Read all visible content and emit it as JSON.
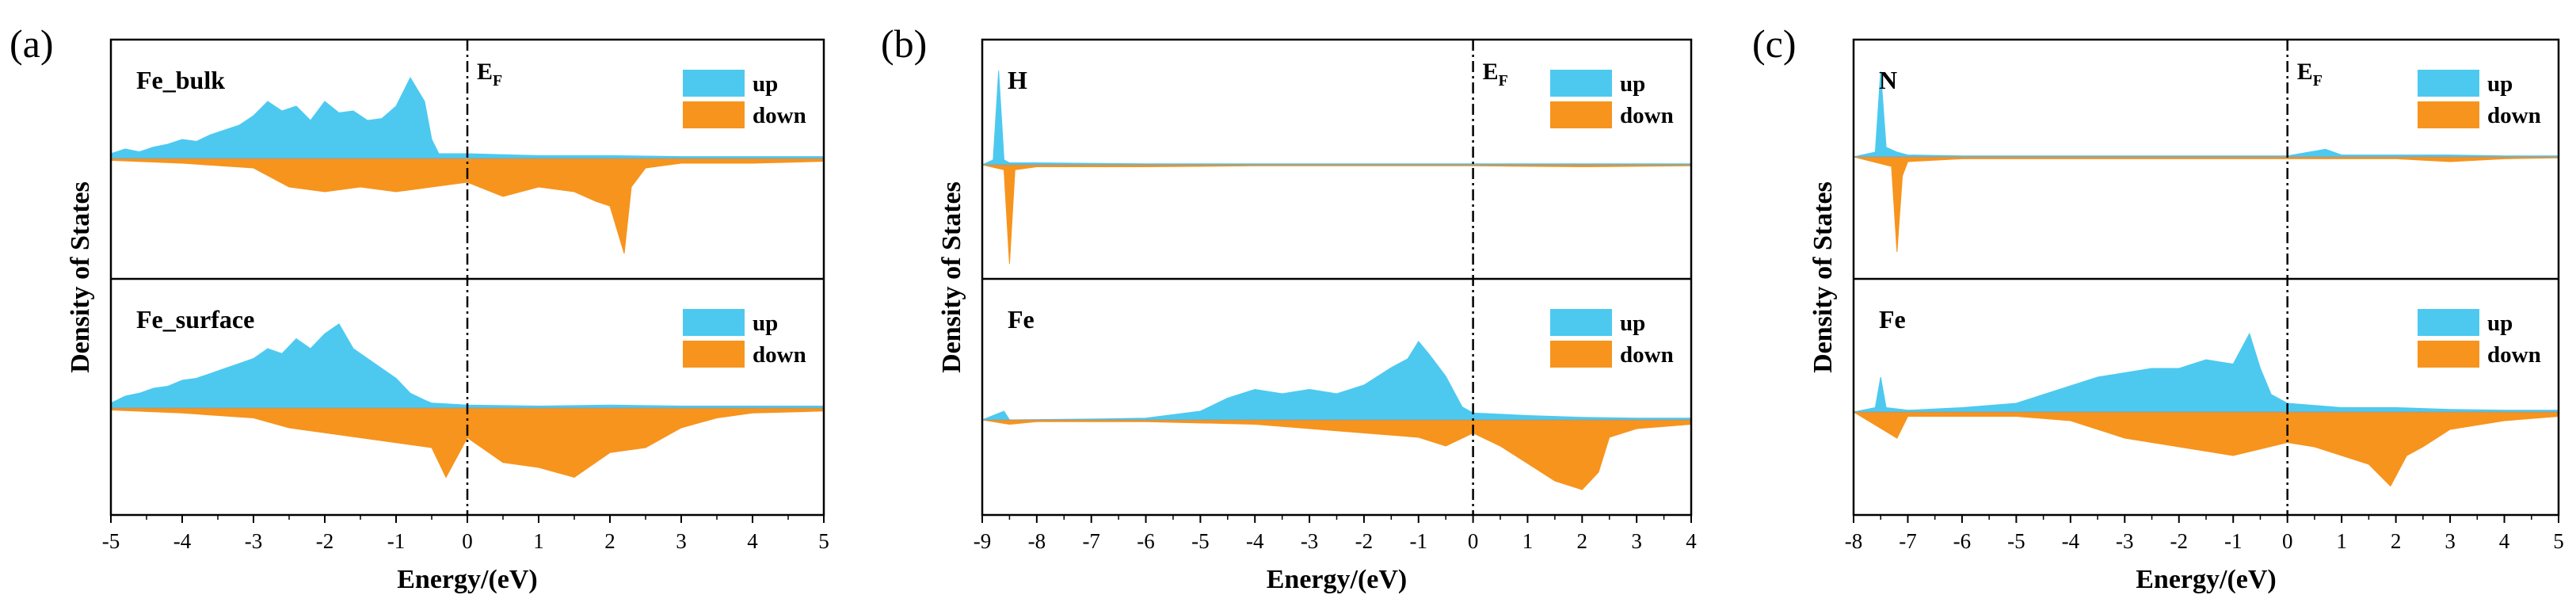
{
  "colors": {
    "up": "#4DC9F0",
    "down": "#F7941D"
  },
  "chart_data": [
    {
      "type": "area",
      "panel_label": "(a)",
      "xlabel": "Energy/(eV)",
      "ylabel": "Density of States",
      "xlim": [
        -5,
        5
      ],
      "xticks": [
        "-5",
        "-4",
        "-3",
        "-2",
        "-1",
        "0",
        "1",
        "2",
        "3",
        "4",
        "5"
      ],
      "fermi_label": "E",
      "fermi_sub": "F",
      "fermi_energy": 0,
      "subplots": [
        {
          "name": "Fe_bulk",
          "legend": [
            "up",
            "down"
          ],
          "ylim": [
            -1,
            1
          ],
          "series": [
            {
              "name": "up",
              "x": [
                -5,
                -4.8,
                -4.6,
                -4.4,
                -4.2,
                -4,
                -3.8,
                -3.6,
                -3.4,
                -3.2,
                -3,
                -2.8,
                -2.6,
                -2.4,
                -2.2,
                -2,
                -1.8,
                -1.6,
                -1.4,
                -1.2,
                -1,
                -0.8,
                -0.6,
                -0.5,
                -0.4,
                0,
                1,
                2,
                3,
                4,
                5
              ],
              "values": [
                0.05,
                0.1,
                0.07,
                0.12,
                0.15,
                0.2,
                0.18,
                0.25,
                0.3,
                0.35,
                0.45,
                0.6,
                0.5,
                0.55,
                0.4,
                0.6,
                0.48,
                0.5,
                0.4,
                0.42,
                0.55,
                0.85,
                0.6,
                0.2,
                0.05,
                0.05,
                0.03,
                0.03,
                0.02,
                0.02,
                0.02
              ]
            },
            {
              "name": "down",
              "x": [
                -5,
                -4,
                -3,
                -2.5,
                -2,
                -1.5,
                -1,
                -0.5,
                0,
                0.5,
                1,
                1.5,
                1.8,
                2,
                2.2,
                2.3,
                2.5,
                3,
                4,
                5
              ],
              "values": [
                -0.02,
                -0.05,
                -0.1,
                -0.3,
                -0.35,
                -0.3,
                -0.35,
                -0.3,
                -0.25,
                -0.4,
                -0.3,
                -0.35,
                -0.45,
                -0.5,
                -1.0,
                -0.3,
                -0.1,
                -0.05,
                -0.05,
                -0.03
              ]
            }
          ]
        },
        {
          "name": "Fe_surface",
          "legend": [
            "up",
            "down"
          ],
          "ylim": [
            -1,
            1
          ],
          "series": [
            {
              "name": "up",
              "x": [
                -5,
                -4.8,
                -4.6,
                -4.4,
                -4.2,
                -4,
                -3.8,
                -3.6,
                -3.4,
                -3.2,
                -3,
                -2.8,
                -2.6,
                -2.4,
                -2.2,
                -2,
                -1.8,
                -1.6,
                -1.4,
                -1.2,
                -1,
                -0.8,
                -0.6,
                -0.5,
                0,
                1,
                2,
                3,
                4,
                5
              ],
              "values": [
                0.05,
                0.12,
                0.15,
                0.2,
                0.22,
                0.28,
                0.3,
                0.35,
                0.4,
                0.45,
                0.5,
                0.6,
                0.55,
                0.7,
                0.6,
                0.75,
                0.85,
                0.6,
                0.5,
                0.4,
                0.3,
                0.15,
                0.08,
                0.05,
                0.03,
                0.02,
                0.03,
                0.02,
                0.02,
                0.02
              ]
            },
            {
              "name": "down",
              "x": [
                -5,
                -4,
                -3,
                -2.5,
                -2,
                -1.5,
                -1,
                -0.5,
                -0.3,
                0,
                0.5,
                1,
                1.5,
                2,
                2.5,
                3,
                3.5,
                4,
                5
              ],
              "values": [
                -0.02,
                -0.05,
                -0.1,
                -0.2,
                -0.25,
                -0.3,
                -0.35,
                -0.4,
                -0.7,
                -0.3,
                -0.55,
                -0.6,
                -0.7,
                -0.45,
                -0.4,
                -0.2,
                -0.1,
                -0.05,
                -0.03
              ]
            }
          ]
        }
      ]
    },
    {
      "type": "area",
      "panel_label": "(b)",
      "xlabel": "Energy/(eV)",
      "ylabel": "Density of States",
      "xlim": [
        -9,
        4
      ],
      "xticks": [
        "-9",
        "-8",
        "-7",
        "-6",
        "-5",
        "-4",
        "-3",
        "-2",
        "-1",
        "0",
        "1",
        "2",
        "3",
        "4"
      ],
      "fermi_label": "E",
      "fermi_sub": "F",
      "fermi_energy": 0,
      "subplots": [
        {
          "name": "H",
          "legend": [
            "up",
            "down"
          ],
          "ylim": [
            -1,
            1
          ],
          "series": [
            {
              "name": "up",
              "x": [
                -9,
                -8.8,
                -8.7,
                -8.6,
                -8.5,
                -8,
                -6,
                -4,
                -2,
                0,
                2,
                4
              ],
              "values": [
                0,
                0.05,
                0.95,
                0.05,
                0.02,
                0.02,
                0.01,
                0.01,
                0.01,
                0.01,
                0.01,
                0.01
              ]
            },
            {
              "name": "down",
              "x": [
                -9,
                -8.6,
                -8.5,
                -8.4,
                -8,
                -6,
                -4,
                -2,
                0,
                2,
                4
              ],
              "values": [
                0,
                -0.05,
                -1.0,
                -0.05,
                -0.02,
                -0.02,
                -0.01,
                -0.01,
                -0.01,
                -0.02,
                -0.01
              ]
            }
          ]
        },
        {
          "name": "Fe",
          "legend": [
            "up",
            "down"
          ],
          "ylim": [
            -1,
            1
          ],
          "series": [
            {
              "name": "up",
              "x": [
                -9,
                -8.6,
                -8.5,
                -7,
                -6,
                -5,
                -4.5,
                -4,
                -3.5,
                -3,
                -2.5,
                -2,
                -1.5,
                -1.2,
                -1,
                -0.8,
                -0.5,
                -0.2,
                0,
                1,
                2,
                3,
                4
              ],
              "values": [
                0,
                0.1,
                0,
                0.01,
                0.02,
                0.1,
                0.25,
                0.35,
                0.3,
                0.35,
                0.3,
                0.4,
                0.6,
                0.7,
                0.9,
                0.75,
                0.5,
                0.15,
                0.08,
                0.05,
                0.03,
                0.02,
                0.02
              ]
            },
            {
              "name": "down",
              "x": [
                -9,
                -8.5,
                -8,
                -6,
                -4,
                -3,
                -2,
                -1,
                -0.5,
                0,
                0.5,
                1,
                1.5,
                2,
                2.3,
                2.5,
                3,
                4
              ],
              "values": [
                0,
                -0.05,
                -0.02,
                -0.02,
                -0.05,
                -0.1,
                -0.15,
                -0.2,
                -0.3,
                -0.15,
                -0.3,
                -0.5,
                -0.7,
                -0.8,
                -0.6,
                -0.2,
                -0.1,
                -0.05
              ]
            }
          ]
        }
      ]
    },
    {
      "type": "area",
      "panel_label": "(c)",
      "xlabel": "Energy/(eV)",
      "ylabel": "Density of States",
      "xlim": [
        -8,
        5
      ],
      "xticks": [
        "-8",
        "-7",
        "-6",
        "-5",
        "-4",
        "-3",
        "-2",
        "-1",
        "0",
        "1",
        "2",
        "3",
        "4",
        "5"
      ],
      "fermi_label": "E",
      "fermi_sub": "F",
      "fermi_energy": 0,
      "subplots": [
        {
          "name": "N",
          "legend": [
            "up",
            "down"
          ],
          "ylim": [
            -1,
            1
          ],
          "series": [
            {
              "name": "up",
              "x": [
                -8,
                -7.6,
                -7.5,
                -7.4,
                -7.2,
                -7,
                -6,
                -4,
                -2,
                0,
                0.7,
                1,
                2,
                3,
                4,
                5
              ],
              "values": [
                0,
                0.05,
                0.9,
                0.1,
                0.05,
                0.02,
                0.01,
                0.01,
                0.01,
                0.01,
                0.08,
                0.02,
                0.02,
                0.02,
                0.01,
                0.01
              ]
            },
            {
              "name": "down",
              "x": [
                -8,
                -7.3,
                -7.2,
                -7.1,
                -7,
                -6,
                -4,
                -2,
                0,
                2,
                3,
                4,
                5
              ],
              "values": [
                0,
                -0.1,
                -1.0,
                -0.2,
                -0.05,
                -0.02,
                -0.02,
                -0.02,
                -0.02,
                -0.02,
                -0.05,
                -0.02,
                -0.01
              ]
            }
          ]
        },
        {
          "name": "Fe",
          "legend": [
            "up",
            "down"
          ],
          "ylim": [
            -1,
            1
          ],
          "series": [
            {
              "name": "up",
              "x": [
                -8,
                -7.6,
                -7.5,
                -7.4,
                -7,
                -6,
                -5,
                -4.5,
                -4,
                -3.5,
                -3,
                -2.5,
                -2,
                -1.5,
                -1,
                -0.7,
                -0.5,
                -0.3,
                0,
                1,
                2,
                3,
                4,
                5
              ],
              "values": [
                0,
                0.05,
                0.4,
                0.05,
                0.02,
                0.05,
                0.1,
                0.2,
                0.3,
                0.4,
                0.45,
                0.5,
                0.5,
                0.6,
                0.55,
                0.9,
                0.5,
                0.2,
                0.1,
                0.05,
                0.05,
                0.03,
                0.02,
                0.02
              ]
            },
            {
              "name": "down",
              "x": [
                -8,
                -7.2,
                -7,
                -6,
                -5,
                -4,
                -3,
                -2,
                -1,
                0,
                0.5,
                1,
                1.5,
                1.9,
                2.2,
                2.5,
                3,
                4,
                5
              ],
              "values": [
                0,
                -0.3,
                -0.05,
                -0.05,
                -0.05,
                -0.1,
                -0.3,
                -0.4,
                -0.5,
                -0.35,
                -0.4,
                -0.5,
                -0.6,
                -0.85,
                -0.5,
                -0.4,
                -0.2,
                -0.1,
                -0.05
              ]
            }
          ]
        }
      ]
    }
  ]
}
